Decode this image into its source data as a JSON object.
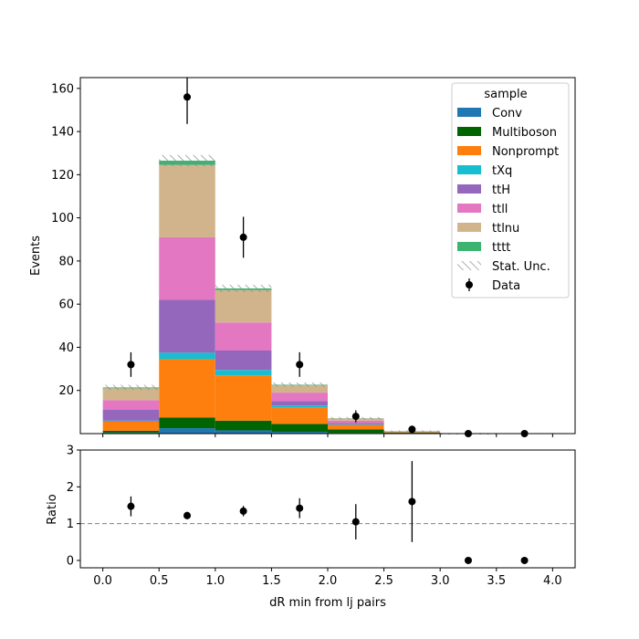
{
  "chart_data": {
    "type": "bar",
    "stacked": true,
    "x_edges": [
      0,
      0.5,
      1.0,
      1.5,
      2.0,
      2.5,
      3.0,
      3.5,
      4.0
    ],
    "bin_centers": [
      0.25,
      0.75,
      1.25,
      1.75,
      2.25,
      2.75,
      3.25,
      3.75
    ],
    "xlabel": "dR min from lj pairs",
    "xlim": [
      -0.2,
      4.2
    ],
    "xticks": [
      0.0,
      0.5,
      1.0,
      1.5,
      2.0,
      2.5,
      3.0,
      3.5,
      4.0
    ],
    "xtick_labels": [
      "0.0",
      "0.5",
      "1.0",
      "1.5",
      "2.0",
      "2.5",
      "3.0",
      "3.5",
      "4.0"
    ],
    "main": {
      "ylabel": "Events",
      "ylim": [
        0,
        165
      ],
      "yticks": [
        20,
        40,
        60,
        80,
        100,
        120,
        140,
        160
      ],
      "ytick_labels": [
        "20",
        "40",
        "60",
        "80",
        "100",
        "120",
        "140",
        "160"
      ],
      "series": [
        {
          "name": "Conv",
          "color": "#1f77b4",
          "values": [
            0.5,
            2.5,
            1.5,
            0.8,
            0.3,
            0.1,
            0.0,
            0.0
          ]
        },
        {
          "name": "Multiboson",
          "color": "#006400",
          "values": [
            0.8,
            5.0,
            4.5,
            3.7,
            1.7,
            0.3,
            0.1,
            0.0
          ]
        },
        {
          "name": "Nonprompt",
          "color": "#ff7f0e",
          "values": [
            4.2,
            27.0,
            21.0,
            7.5,
            2.0,
            0.3,
            0.0,
            0.0
          ]
        },
        {
          "name": "tXq",
          "color": "#17becf",
          "values": [
            0.5,
            3.0,
            2.5,
            1.0,
            0.3,
            0.1,
            0.0,
            0.0
          ]
        },
        {
          "name": "ttH",
          "color": "#9467bd",
          "values": [
            5.0,
            24.5,
            9.0,
            2.0,
            0.6,
            0.1,
            0.0,
            0.0
          ]
        },
        {
          "name": "ttll",
          "color": "#e377c2",
          "values": [
            4.5,
            29.0,
            13.0,
            4.0,
            1.1,
            0.1,
            0.0,
            0.0
          ]
        },
        {
          "name": "ttlnu",
          "color": "#d2b48c",
          "values": [
            5.5,
            33.5,
            15.0,
            3.5,
            1.0,
            0.2,
            0.0,
            0.0
          ]
        },
        {
          "name": "tttt",
          "color": "#3cb371",
          "values": [
            0.4,
            2.0,
            0.8,
            0.2,
            0.1,
            0.0,
            0.0,
            0.0
          ]
        }
      ],
      "stat_unc": {
        "name": "Stat. Unc.",
        "values": [
          1.2,
          2.6,
          1.7,
          1.0,
          0.6,
          0.3,
          0.1,
          0.0
        ]
      },
      "data": {
        "name": "Data",
        "values": [
          32,
          156,
          91,
          32,
          8,
          2,
          0,
          0
        ],
        "errors": [
          5.7,
          12.5,
          9.5,
          5.7,
          2.8,
          1.6,
          0.5,
          0.5
        ]
      }
    },
    "ratio": {
      "ylabel": "Ratio",
      "ylim": [
        -0.2,
        3.0
      ],
      "yticks": [
        0,
        1,
        2,
        3
      ],
      "ytick_labels": [
        "0",
        "1",
        "2",
        "3"
      ],
      "reference_line": 1,
      "values": [
        1.47,
        1.22,
        1.34,
        1.42,
        1.05,
        1.6,
        0.0,
        0.0
      ],
      "errors": [
        0.27,
        0.1,
        0.14,
        0.27,
        0.48,
        1.1,
        0.0,
        0.0
      ]
    },
    "legend": {
      "title": "sample",
      "placement": "top-right"
    }
  }
}
